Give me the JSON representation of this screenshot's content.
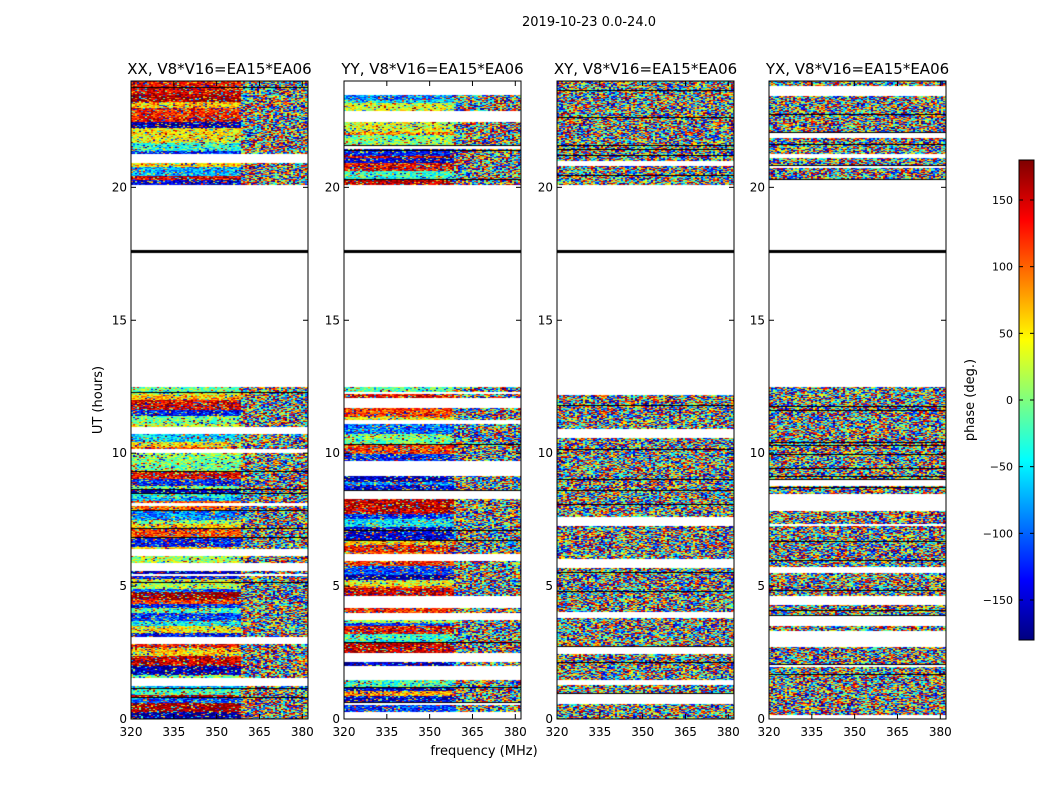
{
  "figure": {
    "suptitle": "2019-10-23 0.0-24.0",
    "xlabel": "frequency (MHz)",
    "ylabel": "UT (hours)"
  },
  "chart_data": {
    "type": "heatmap",
    "x": {
      "label": "frequency (MHz)",
      "range": [
        320,
        382
      ],
      "ticks": [
        320,
        335,
        350,
        365,
        380
      ]
    },
    "y": {
      "label": "UT (hours)",
      "range": [
        0,
        24
      ],
      "ticks": [
        0,
        5,
        10,
        15,
        20
      ]
    },
    "panels": [
      {
        "title": "XX, V8*V16=EA15*EA06",
        "polarization": "XX",
        "coherent_phase": true
      },
      {
        "title": "YY, V8*V16=EA15*EA06",
        "polarization": "YY",
        "coherent_phase": true
      },
      {
        "title": "XY, V8*V16=EA15*EA06",
        "polarization": "XY",
        "coherent_phase": false
      },
      {
        "title": "YX, V8*V16=EA15*EA06",
        "polarization": "YX",
        "coherent_phase": false
      }
    ],
    "data_bands_ut": [
      [
        0.0,
        3.5
      ],
      [
        3.5,
        12.5
      ],
      [
        20.1,
        24.0
      ]
    ],
    "gap_ut": [
      12.5,
      20.1
    ],
    "colorbar": {
      "label": "phase (deg.)",
      "range": [
        -180,
        180
      ],
      "ticks": [
        -150,
        -100,
        -50,
        0,
        50,
        100,
        150
      ],
      "tick_labels": [
        "−150",
        "−100",
        "−50",
        "0",
        "50",
        "100",
        "150"
      ],
      "colormap": "jet",
      "colors": [
        "#00007f",
        "#0000ff",
        "#007fff",
        "#00ffff",
        "#7fff7f",
        "#ffff00",
        "#ff7f00",
        "#ff0000",
        "#7f0000"
      ]
    }
  }
}
